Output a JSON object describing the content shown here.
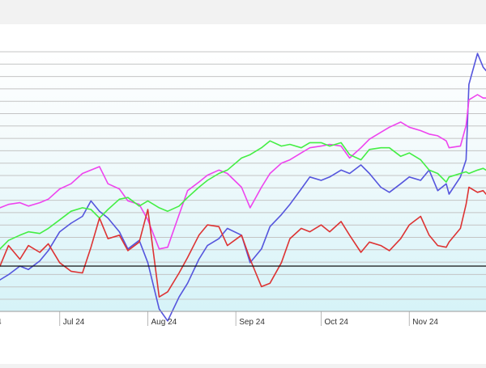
{
  "chart_data": {
    "type": "line",
    "title": "",
    "xlabel": "",
    "ylabel": "",
    "x_tick_labels": [
      "4",
      "Jul 24",
      "Aug 24",
      "Sep 24",
      "Oct 24",
      "Nov 24"
    ],
    "x_range": [
      "2024-06-10",
      "2024-11-28"
    ],
    "grid": true,
    "legend": "none",
    "baseline_value": 0,
    "series": [
      {
        "color": "#5555dd",
        "values": [
          [
            "2024-06-10",
            -0.8
          ],
          [
            "2024-06-13",
            -0.5
          ],
          [
            "2024-06-17",
            0.0
          ],
          [
            "2024-06-20",
            -0.2
          ],
          [
            "2024-06-24",
            0.3
          ],
          [
            "2024-06-27",
            0.9
          ],
          [
            "2024-07-01",
            2.0
          ],
          [
            "2024-07-05",
            2.5
          ],
          [
            "2024-07-09",
            2.9
          ],
          [
            "2024-07-12",
            3.8
          ],
          [
            "2024-07-15",
            3.2
          ],
          [
            "2024-07-18",
            2.8
          ],
          [
            "2024-07-22",
            2.0
          ],
          [
            "2024-07-25",
            1.0
          ],
          [
            "2024-07-29",
            1.5
          ],
          [
            "2024-08-01",
            0.2
          ],
          [
            "2024-08-05",
            -2.5
          ],
          [
            "2024-08-08",
            -3.2
          ],
          [
            "2024-08-12",
            -1.8
          ],
          [
            "2024-08-15",
            -1.0
          ],
          [
            "2024-08-19",
            0.4
          ],
          [
            "2024-08-22",
            1.2
          ],
          [
            "2024-08-26",
            1.6
          ],
          [
            "2024-08-29",
            2.2
          ],
          [
            "2024-09-03",
            1.8
          ],
          [
            "2024-09-06",
            0.2
          ],
          [
            "2024-09-10",
            1.0
          ],
          [
            "2024-09-13",
            2.3
          ],
          [
            "2024-09-17",
            3.0
          ],
          [
            "2024-09-20",
            3.6
          ],
          [
            "2024-09-24",
            4.5
          ],
          [
            "2024-09-27",
            5.2
          ],
          [
            "2024-10-01",
            5.0
          ],
          [
            "2024-10-04",
            5.2
          ],
          [
            "2024-10-08",
            5.6
          ],
          [
            "2024-10-11",
            5.4
          ],
          [
            "2024-10-15",
            5.9
          ],
          [
            "2024-10-18",
            5.4
          ],
          [
            "2024-10-22",
            4.6
          ],
          [
            "2024-10-25",
            4.3
          ],
          [
            "2024-10-29",
            4.8
          ],
          [
            "2024-11-01",
            5.2
          ],
          [
            "2024-11-05",
            5.0
          ],
          [
            "2024-11-08",
            5.6
          ],
          [
            "2024-11-11",
            4.4
          ],
          [
            "2024-11-14",
            4.8
          ],
          [
            "2024-11-15",
            4.2
          ],
          [
            "2024-11-19",
            5.2
          ],
          [
            "2024-11-21",
            6.2
          ],
          [
            "2024-11-22",
            10.6
          ],
          [
            "2024-11-25",
            12.4
          ],
          [
            "2024-11-27",
            11.6
          ],
          [
            "2024-11-28",
            11.4
          ]
        ]
      },
      {
        "color": "#ee44ee",
        "values": [
          [
            "2024-06-10",
            3.4
          ],
          [
            "2024-06-13",
            3.6
          ],
          [
            "2024-06-17",
            3.7
          ],
          [
            "2024-06-20",
            3.5
          ],
          [
            "2024-06-24",
            3.7
          ],
          [
            "2024-06-27",
            3.9
          ],
          [
            "2024-07-01",
            4.5
          ],
          [
            "2024-07-05",
            4.8
          ],
          [
            "2024-07-09",
            5.4
          ],
          [
            "2024-07-12",
            5.6
          ],
          [
            "2024-07-15",
            5.8
          ],
          [
            "2024-07-18",
            4.8
          ],
          [
            "2024-07-22",
            4.5
          ],
          [
            "2024-07-25",
            3.8
          ],
          [
            "2024-07-29",
            3.6
          ],
          [
            "2024-08-01",
            2.7
          ],
          [
            "2024-08-05",
            1.0
          ],
          [
            "2024-08-08",
            1.1
          ],
          [
            "2024-08-12",
            3.0
          ],
          [
            "2024-08-15",
            4.4
          ],
          [
            "2024-08-19",
            4.9
          ],
          [
            "2024-08-22",
            5.3
          ],
          [
            "2024-08-26",
            5.6
          ],
          [
            "2024-08-29",
            5.4
          ],
          [
            "2024-09-03",
            4.6
          ],
          [
            "2024-09-06",
            3.4
          ],
          [
            "2024-09-10",
            4.6
          ],
          [
            "2024-09-13",
            5.4
          ],
          [
            "2024-09-17",
            6.0
          ],
          [
            "2024-09-20",
            6.2
          ],
          [
            "2024-09-24",
            6.6
          ],
          [
            "2024-09-27",
            6.9
          ],
          [
            "2024-10-01",
            7.0
          ],
          [
            "2024-10-04",
            7.1
          ],
          [
            "2024-10-08",
            7.0
          ],
          [
            "2024-10-11",
            6.3
          ],
          [
            "2024-10-15",
            6.9
          ],
          [
            "2024-10-18",
            7.4
          ],
          [
            "2024-10-22",
            7.8
          ],
          [
            "2024-10-25",
            8.1
          ],
          [
            "2024-10-29",
            8.4
          ],
          [
            "2024-11-01",
            8.1
          ],
          [
            "2024-11-05",
            7.9
          ],
          [
            "2024-11-08",
            7.7
          ],
          [
            "2024-11-11",
            7.6
          ],
          [
            "2024-11-14",
            7.3
          ],
          [
            "2024-11-15",
            6.9
          ],
          [
            "2024-11-19",
            7.0
          ],
          [
            "2024-11-21",
            8.2
          ],
          [
            "2024-11-22",
            9.7
          ],
          [
            "2024-11-25",
            10.0
          ],
          [
            "2024-11-27",
            9.8
          ],
          [
            "2024-11-28",
            9.8
          ]
        ]
      },
      {
        "color": "#44ee44",
        "values": [
          [
            "2024-06-10",
            1.0
          ],
          [
            "2024-06-13",
            1.5
          ],
          [
            "2024-06-17",
            1.8
          ],
          [
            "2024-06-20",
            2.0
          ],
          [
            "2024-06-24",
            1.9
          ],
          [
            "2024-06-27",
            2.2
          ],
          [
            "2024-07-01",
            2.7
          ],
          [
            "2024-07-05",
            3.2
          ],
          [
            "2024-07-09",
            3.4
          ],
          [
            "2024-07-12",
            3.3
          ],
          [
            "2024-07-15",
            2.8
          ],
          [
            "2024-07-18",
            3.3
          ],
          [
            "2024-07-22",
            3.9
          ],
          [
            "2024-07-25",
            4.0
          ],
          [
            "2024-07-29",
            3.5
          ],
          [
            "2024-08-01",
            3.8
          ],
          [
            "2024-08-05",
            3.4
          ],
          [
            "2024-08-08",
            3.2
          ],
          [
            "2024-08-12",
            3.5
          ],
          [
            "2024-08-15",
            4.0
          ],
          [
            "2024-08-19",
            4.6
          ],
          [
            "2024-08-22",
            5.0
          ],
          [
            "2024-08-26",
            5.4
          ],
          [
            "2024-08-29",
            5.6
          ],
          [
            "2024-09-03",
            6.3
          ],
          [
            "2024-09-06",
            6.5
          ],
          [
            "2024-09-10",
            6.9
          ],
          [
            "2024-09-13",
            7.3
          ],
          [
            "2024-09-17",
            7.0
          ],
          [
            "2024-09-20",
            7.1
          ],
          [
            "2024-09-24",
            6.9
          ],
          [
            "2024-09-27",
            7.2
          ],
          [
            "2024-10-01",
            7.2
          ],
          [
            "2024-10-04",
            7.0
          ],
          [
            "2024-10-08",
            7.2
          ],
          [
            "2024-10-11",
            6.5
          ],
          [
            "2024-10-15",
            6.2
          ],
          [
            "2024-10-18",
            6.8
          ],
          [
            "2024-10-22",
            6.9
          ],
          [
            "2024-10-25",
            6.9
          ],
          [
            "2024-10-29",
            6.4
          ],
          [
            "2024-11-01",
            6.6
          ],
          [
            "2024-11-05",
            6.2
          ],
          [
            "2024-11-08",
            5.6
          ],
          [
            "2024-11-11",
            5.4
          ],
          [
            "2024-11-14",
            4.9
          ],
          [
            "2024-11-15",
            5.2
          ],
          [
            "2024-11-19",
            5.4
          ],
          [
            "2024-11-21",
            5.5
          ],
          [
            "2024-11-22",
            5.4
          ],
          [
            "2024-11-25",
            5.6
          ],
          [
            "2024-11-27",
            5.7
          ],
          [
            "2024-11-28",
            5.6
          ]
        ]
      },
      {
        "color": "#dd3333",
        "values": [
          [
            "2024-06-10",
            0.0
          ],
          [
            "2024-06-13",
            1.2
          ],
          [
            "2024-06-17",
            0.4
          ],
          [
            "2024-06-20",
            1.2
          ],
          [
            "2024-06-24",
            0.8
          ],
          [
            "2024-06-27",
            1.3
          ],
          [
            "2024-07-01",
            0.2
          ],
          [
            "2024-07-05",
            -0.3
          ],
          [
            "2024-07-09",
            -0.4
          ],
          [
            "2024-07-12",
            1.1
          ],
          [
            "2024-07-15",
            2.8
          ],
          [
            "2024-07-18",
            1.6
          ],
          [
            "2024-07-22",
            1.8
          ],
          [
            "2024-07-25",
            0.9
          ],
          [
            "2024-07-29",
            1.4
          ],
          [
            "2024-08-01",
            3.3
          ],
          [
            "2024-08-05",
            -1.8
          ],
          [
            "2024-08-08",
            -1.5
          ],
          [
            "2024-08-12",
            -0.4
          ],
          [
            "2024-08-15",
            0.5
          ],
          [
            "2024-08-19",
            1.8
          ],
          [
            "2024-08-22",
            2.4
          ],
          [
            "2024-08-26",
            2.3
          ],
          [
            "2024-08-29",
            1.2
          ],
          [
            "2024-09-03",
            1.8
          ],
          [
            "2024-09-06",
            0.4
          ],
          [
            "2024-09-10",
            -1.2
          ],
          [
            "2024-09-13",
            -1.0
          ],
          [
            "2024-09-17",
            0.2
          ],
          [
            "2024-09-20",
            1.6
          ],
          [
            "2024-09-24",
            2.2
          ],
          [
            "2024-09-27",
            2.0
          ],
          [
            "2024-10-01",
            2.4
          ],
          [
            "2024-10-04",
            2.0
          ],
          [
            "2024-10-08",
            2.6
          ],
          [
            "2024-10-11",
            1.8
          ],
          [
            "2024-10-15",
            0.8
          ],
          [
            "2024-10-18",
            1.4
          ],
          [
            "2024-10-22",
            1.2
          ],
          [
            "2024-10-25",
            0.9
          ],
          [
            "2024-10-29",
            1.6
          ],
          [
            "2024-11-01",
            2.4
          ],
          [
            "2024-11-05",
            2.9
          ],
          [
            "2024-11-08",
            1.8
          ],
          [
            "2024-11-11",
            1.2
          ],
          [
            "2024-11-14",
            1.1
          ],
          [
            "2024-11-15",
            1.4
          ],
          [
            "2024-11-19",
            2.2
          ],
          [
            "2024-11-21",
            3.6
          ],
          [
            "2024-11-22",
            4.6
          ],
          [
            "2024-11-25",
            4.3
          ],
          [
            "2024-11-27",
            4.4
          ],
          [
            "2024-11-28",
            4.2
          ]
        ]
      }
    ]
  }
}
